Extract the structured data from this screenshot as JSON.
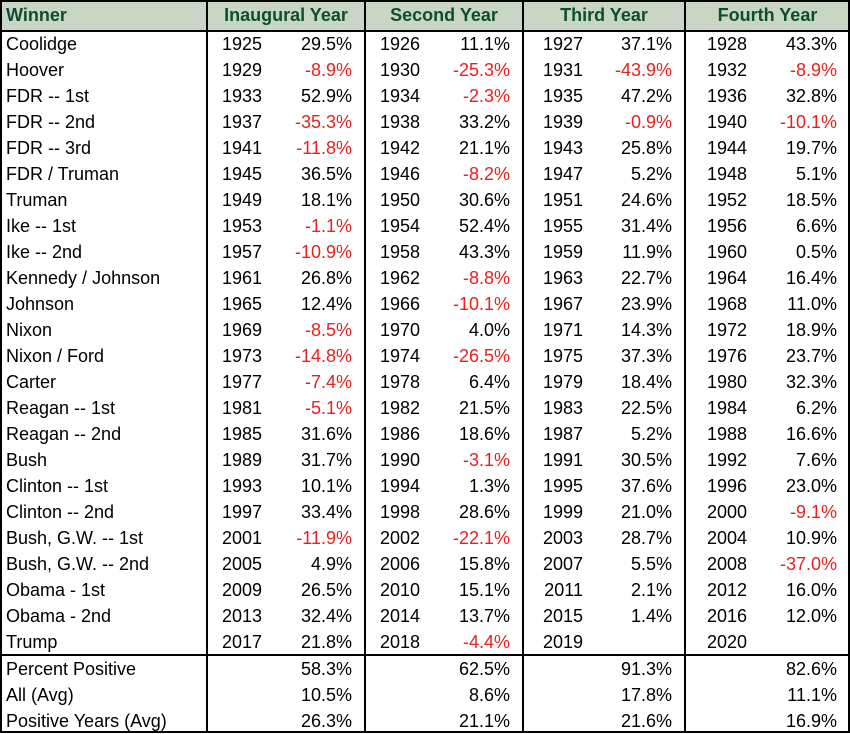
{
  "columns": [
    "Winner",
    "Inaugural Year",
    "Second Year",
    "Third Year",
    "Fourth Year"
  ],
  "rows": [
    {
      "name": "Coolidge",
      "c": [
        [
          "1925",
          "29.5%"
        ],
        [
          "1926",
          "11.1%"
        ],
        [
          "1927",
          "37.1%"
        ],
        [
          "1928",
          "43.3%"
        ]
      ]
    },
    {
      "name": "Hoover",
      "c": [
        [
          "1929",
          "-8.9%"
        ],
        [
          "1930",
          "-25.3%"
        ],
        [
          "1931",
          "-43.9%"
        ],
        [
          "1932",
          "-8.9%"
        ]
      ]
    },
    {
      "name": "FDR -- 1st",
      "c": [
        [
          "1933",
          "52.9%"
        ],
        [
          "1934",
          "-2.3%"
        ],
        [
          "1935",
          "47.2%"
        ],
        [
          "1936",
          "32.8%"
        ]
      ]
    },
    {
      "name": "FDR -- 2nd",
      "c": [
        [
          "1937",
          "-35.3%"
        ],
        [
          "1938",
          "33.2%"
        ],
        [
          "1939",
          "-0.9%"
        ],
        [
          "1940",
          "-10.1%"
        ]
      ]
    },
    {
      "name": "FDR -- 3rd",
      "c": [
        [
          "1941",
          "-11.8%"
        ],
        [
          "1942",
          "21.1%"
        ],
        [
          "1943",
          "25.8%"
        ],
        [
          "1944",
          "19.7%"
        ]
      ]
    },
    {
      "name": "FDR / Truman",
      "c": [
        [
          "1945",
          "36.5%"
        ],
        [
          "1946",
          "-8.2%"
        ],
        [
          "1947",
          "5.2%"
        ],
        [
          "1948",
          "5.1%"
        ]
      ]
    },
    {
      "name": "Truman",
      "c": [
        [
          "1949",
          "18.1%"
        ],
        [
          "1950",
          "30.6%"
        ],
        [
          "1951",
          "24.6%"
        ],
        [
          "1952",
          "18.5%"
        ]
      ]
    },
    {
      "name": "Ike -- 1st",
      "c": [
        [
          "1953",
          "-1.1%"
        ],
        [
          "1954",
          "52.4%"
        ],
        [
          "1955",
          "31.4%"
        ],
        [
          "1956",
          "6.6%"
        ]
      ]
    },
    {
      "name": "Ike -- 2nd",
      "c": [
        [
          "1957",
          "-10.9%"
        ],
        [
          "1958",
          "43.3%"
        ],
        [
          "1959",
          "11.9%"
        ],
        [
          "1960",
          "0.5%"
        ]
      ]
    },
    {
      "name": "Kennedy / Johnson",
      "c": [
        [
          "1961",
          "26.8%"
        ],
        [
          "1962",
          "-8.8%"
        ],
        [
          "1963",
          "22.7%"
        ],
        [
          "1964",
          "16.4%"
        ]
      ]
    },
    {
      "name": "Johnson",
      "c": [
        [
          "1965",
          "12.4%"
        ],
        [
          "1966",
          "-10.1%"
        ],
        [
          "1967",
          "23.9%"
        ],
        [
          "1968",
          "11.0%"
        ]
      ]
    },
    {
      "name": "Nixon",
      "c": [
        [
          "1969",
          "-8.5%"
        ],
        [
          "1970",
          "4.0%"
        ],
        [
          "1971",
          "14.3%"
        ],
        [
          "1972",
          "18.9%"
        ]
      ]
    },
    {
      "name": "Nixon / Ford",
      "c": [
        [
          "1973",
          "-14.8%"
        ],
        [
          "1974",
          "-26.5%"
        ],
        [
          "1975",
          "37.3%"
        ],
        [
          "1976",
          "23.7%"
        ]
      ]
    },
    {
      "name": "Carter",
      "c": [
        [
          "1977",
          "-7.4%"
        ],
        [
          "1978",
          "6.4%"
        ],
        [
          "1979",
          "18.4%"
        ],
        [
          "1980",
          "32.3%"
        ]
      ]
    },
    {
      "name": "Reagan -- 1st",
      "c": [
        [
          "1981",
          "-5.1%"
        ],
        [
          "1982",
          "21.5%"
        ],
        [
          "1983",
          "22.5%"
        ],
        [
          "1984",
          "6.2%"
        ]
      ]
    },
    {
      "name": "Reagan -- 2nd",
      "c": [
        [
          "1985",
          "31.6%"
        ],
        [
          "1986",
          "18.6%"
        ],
        [
          "1987",
          "5.2%"
        ],
        [
          "1988",
          "16.6%"
        ]
      ]
    },
    {
      "name": "Bush",
      "c": [
        [
          "1989",
          "31.7%"
        ],
        [
          "1990",
          "-3.1%"
        ],
        [
          "1991",
          "30.5%"
        ],
        [
          "1992",
          "7.6%"
        ]
      ]
    },
    {
      "name": "Clinton -- 1st",
      "c": [
        [
          "1993",
          "10.1%"
        ],
        [
          "1994",
          "1.3%"
        ],
        [
          "1995",
          "37.6%"
        ],
        [
          "1996",
          "23.0%"
        ]
      ]
    },
    {
      "name": "Clinton -- 2nd",
      "c": [
        [
          "1997",
          "33.4%"
        ],
        [
          "1998",
          "28.6%"
        ],
        [
          "1999",
          "21.0%"
        ],
        [
          "2000",
          "-9.1%"
        ]
      ]
    },
    {
      "name": "Bush, G.W. -- 1st",
      "c": [
        [
          "2001",
          "-11.9%"
        ],
        [
          "2002",
          "-22.1%"
        ],
        [
          "2003",
          "28.7%"
        ],
        [
          "2004",
          "10.9%"
        ]
      ]
    },
    {
      "name": "Bush, G.W. -- 2nd",
      "c": [
        [
          "2005",
          "4.9%"
        ],
        [
          "2006",
          "15.8%"
        ],
        [
          "2007",
          "5.5%"
        ],
        [
          "2008",
          "-37.0%"
        ]
      ]
    },
    {
      "name": "Obama - 1st",
      "c": [
        [
          "2009",
          "26.5%"
        ],
        [
          "2010",
          "15.1%"
        ],
        [
          "2011",
          "2.1%"
        ],
        [
          "2012",
          "16.0%"
        ]
      ]
    },
    {
      "name": "Obama - 2nd",
      "c": [
        [
          "2013",
          "32.4%"
        ],
        [
          "2014",
          "13.7%"
        ],
        [
          "2015",
          "1.4%"
        ],
        [
          "2016",
          "12.0%"
        ]
      ]
    },
    {
      "name": "Trump",
      "c": [
        [
          "2017",
          "21.8%"
        ],
        [
          "2018",
          "-4.4%"
        ],
        [
          "2019",
          ""
        ],
        [
          "2020",
          ""
        ]
      ]
    }
  ],
  "summary": [
    {
      "name": "Percent Positive",
      "v": [
        "58.3%",
        "62.5%",
        "91.3%",
        "82.6%"
      ]
    },
    {
      "name": "All (Avg)",
      "v": [
        "10.5%",
        "8.6%",
        "17.8%",
        "11.1%"
      ]
    },
    {
      "name": "Positive Years (Avg)",
      "v": [
        "26.3%",
        "21.1%",
        "21.6%",
        "16.9%"
      ]
    }
  ],
  "colors": {
    "header_bg": "#c9d6c6",
    "header_text": "#0f4d2f",
    "negative": "#e8211f",
    "text": "#000000"
  }
}
